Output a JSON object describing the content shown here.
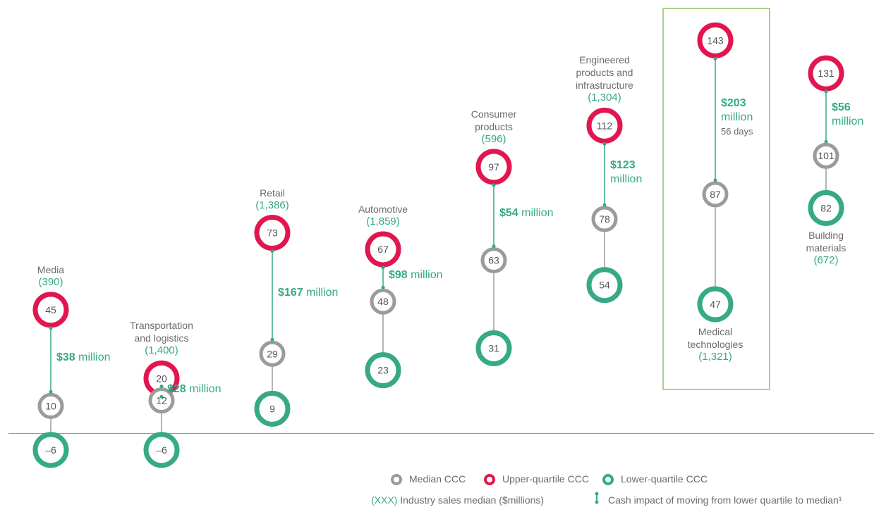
{
  "chart_data": {
    "type": "dot",
    "categories": [
      "Media",
      "Transportation and logistics",
      "Retail",
      "Automotive",
      "Consumer products",
      "Engineered products and infrastructure",
      "Medical technologies",
      "Building materials"
    ],
    "series": [
      {
        "name": "Median CCC",
        "color": "#9b9b9b",
        "values": [
          10,
          12,
          29,
          48,
          63,
          78,
          87,
          101
        ]
      },
      {
        "name": "Upper-quartile CCC",
        "color": "#e2164f",
        "values": [
          45,
          20,
          73,
          67,
          97,
          112,
          143,
          131
        ]
      },
      {
        "name": "Lower-quartile CCC",
        "color": "#36a987",
        "values": [
          -6,
          -6,
          9,
          23,
          31,
          54,
          47,
          82
        ],
        "value_labels": [
          "–6",
          "–6",
          "9",
          "23",
          "31",
          "54",
          "47",
          "82"
        ]
      }
    ],
    "sales_median": [
      390,
      1400,
      1386,
      1859,
      596,
      1304,
      1321,
      672
    ],
    "sales_labels": [
      "(390)",
      "(1,400)",
      "(1,386)",
      "(1,859)",
      "(596)",
      "(1,304)",
      "(1,321)",
      "(672)"
    ],
    "cash_impact": [
      38,
      28,
      167,
      98,
      54,
      123,
      203,
      56
    ],
    "cash_labels": [
      "$38",
      "$28",
      "$167",
      "$98",
      "$54",
      "$123",
      "$203",
      "$56"
    ],
    "cash_unit": "million",
    "cash_notes": [
      null,
      null,
      null,
      null,
      null,
      null,
      "56 days",
      null
    ],
    "ylim": [
      -15,
      150
    ],
    "legend_notes": {
      "sales_key": "(XXX)",
      "sales_text": "Industry sales median  ($millions)",
      "cash_text": "Cash impact of moving from lower quartile to median¹"
    }
  }
}
